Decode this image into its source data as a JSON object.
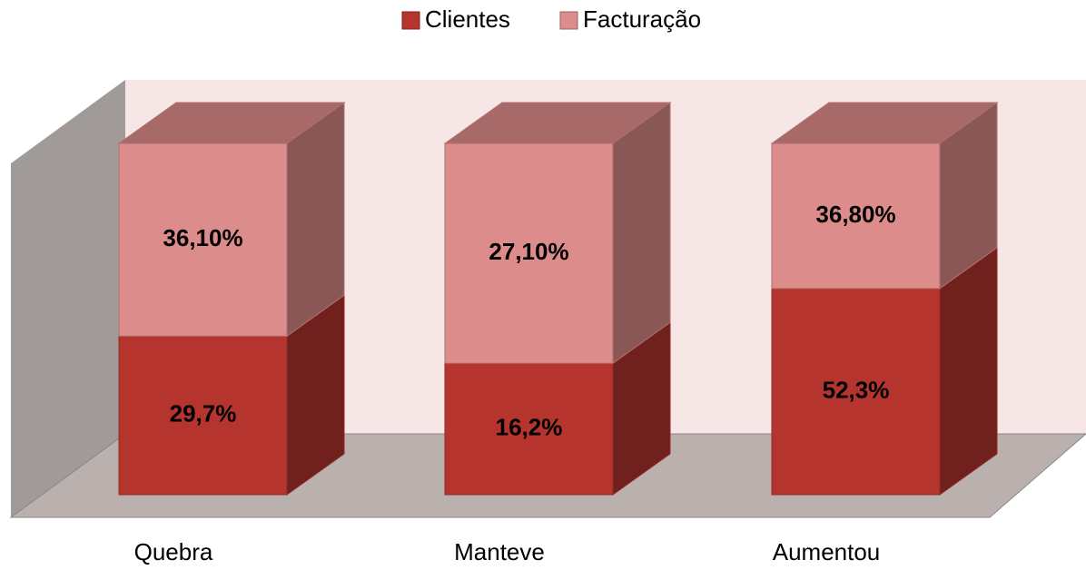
{
  "chart_data": {
    "type": "bar",
    "stacked": "percent",
    "categories": [
      "Quebra",
      "Manteve",
      "Aumentou"
    ],
    "series": [
      {
        "name": "Clientes",
        "color": "#b5342e",
        "values": [
          29.7,
          16.2,
          52.3
        ],
        "value_labels": [
          "29,7%",
          "16,2%",
          "52,3%"
        ]
      },
      {
        "name": "Facturação",
        "color": "#dc8c8a",
        "values": [
          36.1,
          27.1,
          36.8
        ],
        "value_labels": [
          "36,10%",
          "27,10%",
          "36,80%"
        ]
      }
    ],
    "legend": "top"
  }
}
